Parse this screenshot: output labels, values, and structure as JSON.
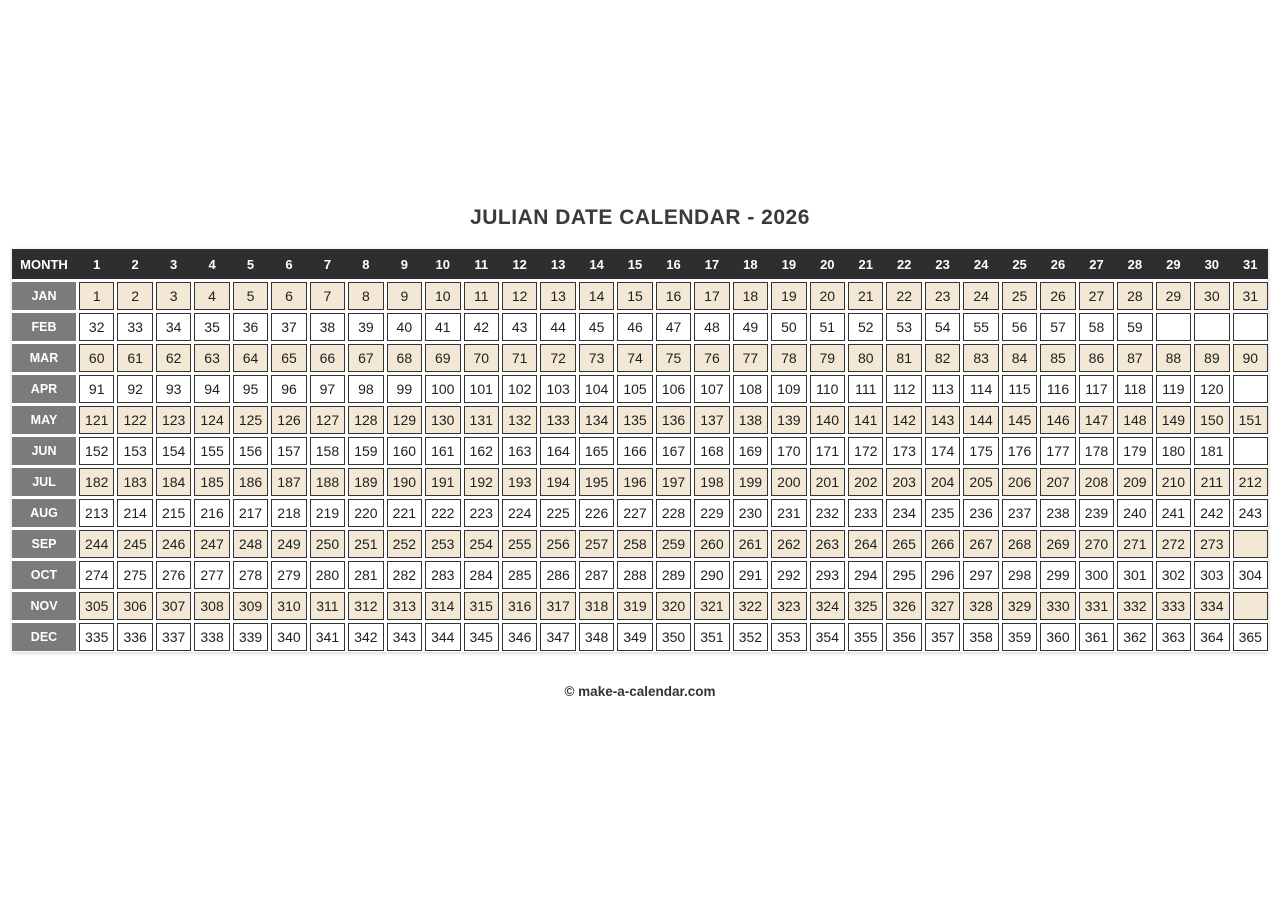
{
  "title": "JULIAN DATE CALENDAR - 2026",
  "footer": {
    "credit": "© make-a-calendar.com"
  },
  "colors": {
    "row_shaded": "#f2e8d5",
    "month_column": "#7b7b7b",
    "header_bar": "#2e2e2e",
    "cell_border": "#333333",
    "page_background": "#ffffff"
  },
  "table": {
    "corner_label": "MONTH",
    "day_headers": [
      1,
      2,
      3,
      4,
      5,
      6,
      7,
      8,
      9,
      10,
      11,
      12,
      13,
      14,
      15,
      16,
      17,
      18,
      19,
      20,
      21,
      22,
      23,
      24,
      25,
      26,
      27,
      28,
      29,
      30,
      31
    ],
    "rows": [
      {
        "label": "JAN",
        "values": [
          1,
          2,
          3,
          4,
          5,
          6,
          7,
          8,
          9,
          10,
          11,
          12,
          13,
          14,
          15,
          16,
          17,
          18,
          19,
          20,
          21,
          22,
          23,
          24,
          25,
          26,
          27,
          28,
          29,
          30,
          31
        ]
      },
      {
        "label": "FEB",
        "values": [
          32,
          33,
          34,
          35,
          36,
          37,
          38,
          39,
          40,
          41,
          42,
          43,
          44,
          45,
          46,
          47,
          48,
          49,
          50,
          51,
          52,
          53,
          54,
          55,
          56,
          57,
          58,
          59
        ]
      },
      {
        "label": "MAR",
        "values": [
          60,
          61,
          62,
          63,
          64,
          65,
          66,
          67,
          68,
          69,
          70,
          71,
          72,
          73,
          74,
          75,
          76,
          77,
          78,
          79,
          80,
          81,
          82,
          83,
          84,
          85,
          86,
          87,
          88,
          89,
          90
        ]
      },
      {
        "label": "APR",
        "values": [
          91,
          92,
          93,
          94,
          95,
          96,
          97,
          98,
          99,
          100,
          101,
          102,
          103,
          104,
          105,
          106,
          107,
          108,
          109,
          110,
          111,
          112,
          113,
          114,
          115,
          116,
          117,
          118,
          119,
          120
        ]
      },
      {
        "label": "MAY",
        "values": [
          121,
          122,
          123,
          124,
          125,
          126,
          127,
          128,
          129,
          130,
          131,
          132,
          133,
          134,
          135,
          136,
          137,
          138,
          139,
          140,
          141,
          142,
          143,
          144,
          145,
          146,
          147,
          148,
          149,
          150,
          151
        ]
      },
      {
        "label": "JUN",
        "values": [
          152,
          153,
          154,
          155,
          156,
          157,
          158,
          159,
          160,
          161,
          162,
          163,
          164,
          165,
          166,
          167,
          168,
          169,
          170,
          171,
          172,
          173,
          174,
          175,
          176,
          177,
          178,
          179,
          180,
          181
        ]
      },
      {
        "label": "JUL",
        "values": [
          182,
          183,
          184,
          185,
          186,
          187,
          188,
          189,
          190,
          191,
          192,
          193,
          194,
          195,
          196,
          197,
          198,
          199,
          200,
          201,
          202,
          203,
          204,
          205,
          206,
          207,
          208,
          209,
          210,
          211,
          212
        ]
      },
      {
        "label": "AUG",
        "values": [
          213,
          214,
          215,
          216,
          217,
          218,
          219,
          220,
          221,
          222,
          223,
          224,
          225,
          226,
          227,
          228,
          229,
          230,
          231,
          232,
          233,
          234,
          235,
          236,
          237,
          238,
          239,
          240,
          241,
          242,
          243
        ]
      },
      {
        "label": "SEP",
        "values": [
          244,
          245,
          246,
          247,
          248,
          249,
          250,
          251,
          252,
          253,
          254,
          255,
          256,
          257,
          258,
          259,
          260,
          261,
          262,
          263,
          264,
          265,
          266,
          267,
          268,
          269,
          270,
          271,
          272,
          273
        ]
      },
      {
        "label": "OCT",
        "values": [
          274,
          275,
          276,
          277,
          278,
          279,
          280,
          281,
          282,
          283,
          284,
          285,
          286,
          287,
          288,
          289,
          290,
          291,
          292,
          293,
          294,
          295,
          296,
          297,
          298,
          299,
          300,
          301,
          302,
          303,
          304
        ]
      },
      {
        "label": "NOV",
        "values": [
          305,
          306,
          307,
          308,
          309,
          310,
          311,
          312,
          313,
          314,
          315,
          316,
          317,
          318,
          319,
          320,
          321,
          322,
          323,
          324,
          325,
          326,
          327,
          328,
          329,
          330,
          331,
          332,
          333,
          334
        ]
      },
      {
        "label": "DEC",
        "values": [
          335,
          336,
          337,
          338,
          339,
          340,
          341,
          342,
          343,
          344,
          345,
          346,
          347,
          348,
          349,
          350,
          351,
          352,
          353,
          354,
          355,
          356,
          357,
          358,
          359,
          360,
          361,
          362,
          363,
          364,
          365
        ]
      }
    ]
  }
}
